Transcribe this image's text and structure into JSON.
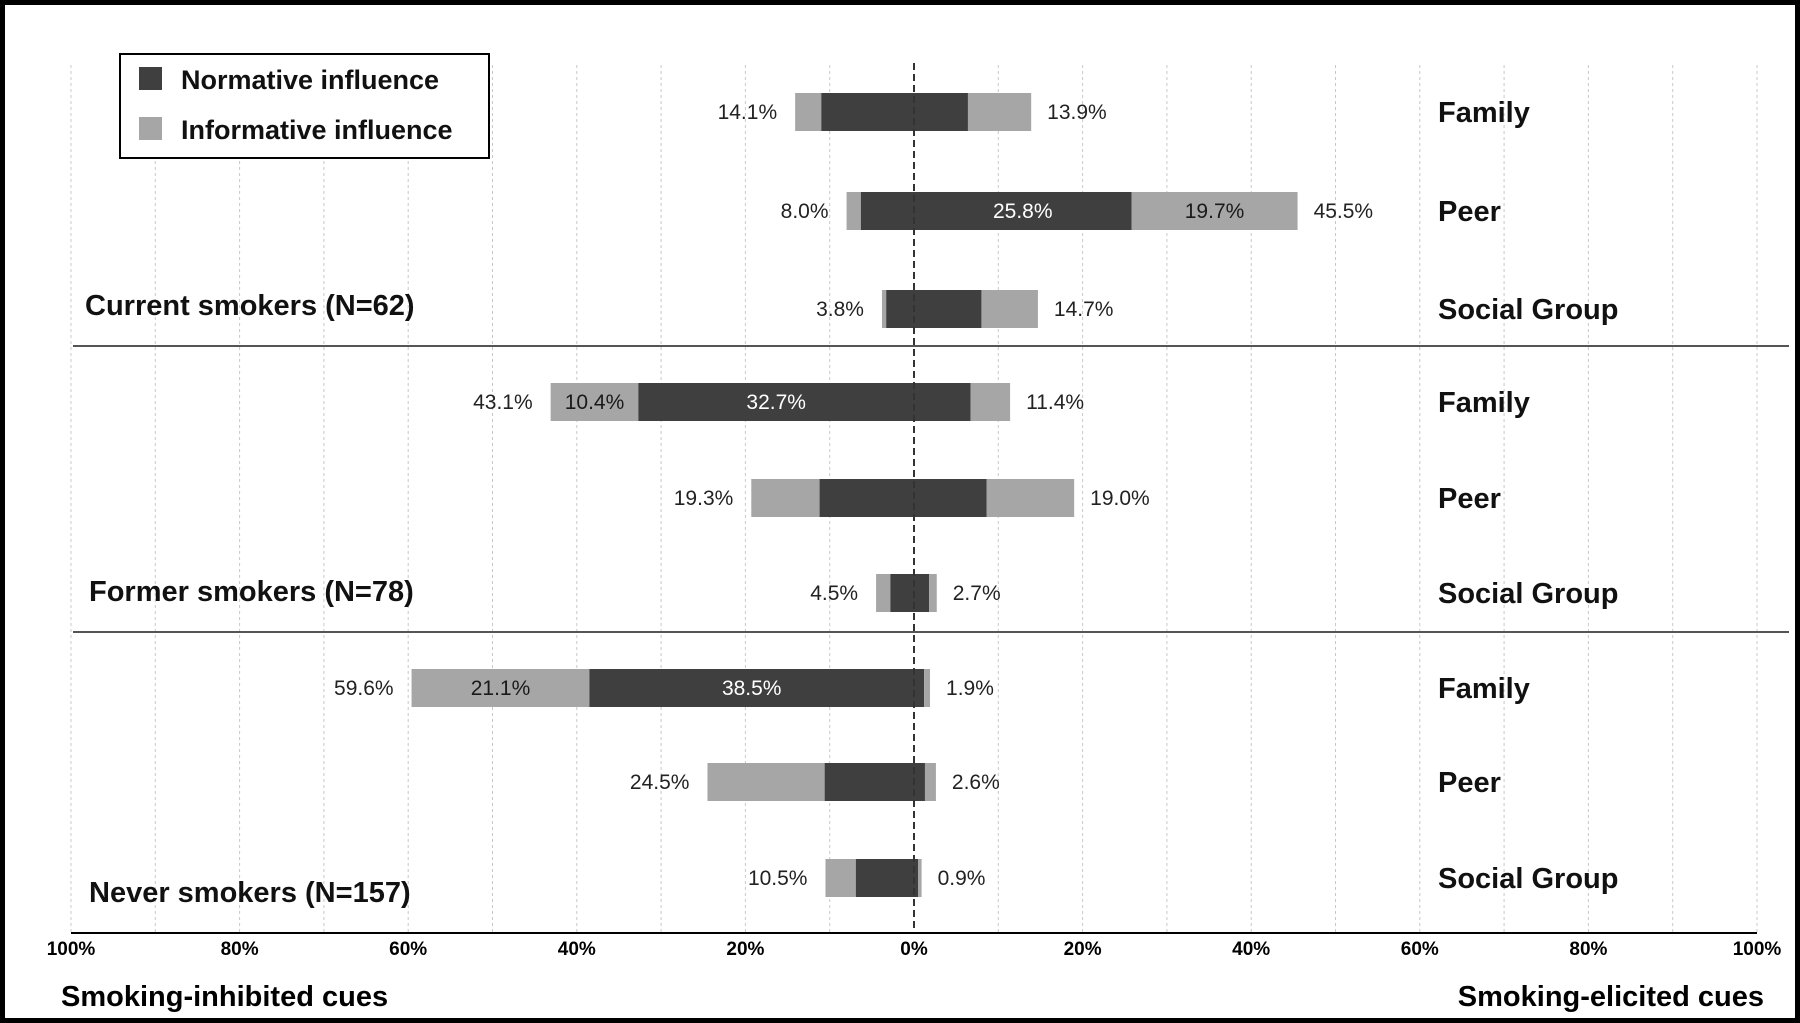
{
  "chart_data": {
    "type": "bar",
    "orientation": "horizontal-diverging",
    "axis": {
      "ticks": [
        "100%",
        "80%",
        "60%",
        "40%",
        "20%",
        "0%",
        "20%",
        "40%",
        "60%",
        "80%",
        "100%"
      ],
      "xlim": [
        -100,
        100
      ],
      "left_title": "Smoking-inhibited  cues",
      "right_title": "Smoking-elicited  cues",
      "grid": true
    },
    "legend": {
      "placement": "top-left",
      "entries": [
        {
          "name": "Normative influence",
          "color": "#3f3f3f"
        },
        {
          "name": "Informative influence",
          "color": "#a6a6a6"
        }
      ]
    },
    "colors": {
      "normative": "#3f3f3f",
      "informative": "#a6a6a6"
    },
    "groups": [
      {
        "label": "Current smokers (N=62)",
        "rows": [
          {
            "category": "Family",
            "left": {
              "normative": 11.0,
              "informative": 3.1,
              "total_label": "14.1%"
            },
            "right": {
              "normative": 6.4,
              "informative": 7.5,
              "total_label": "13.9%"
            }
          },
          {
            "category": "Peer",
            "left": {
              "normative": 6.3,
              "informative": 1.7,
              "total_label": "8.0%"
            },
            "right": {
              "normative": 25.8,
              "informative": 19.7,
              "normative_label": "25.8%",
              "informative_label": "19.7%",
              "total_label": "45.5%"
            }
          },
          {
            "category": "Social Group",
            "left": {
              "normative": 3.3,
              "informative": 0.5,
              "total_label": "3.8%"
            },
            "right": {
              "normative": 8.0,
              "informative": 6.7,
              "total_label": "14.7%"
            }
          }
        ]
      },
      {
        "label": "Former smokers (N=78)",
        "rows": [
          {
            "category": "Family",
            "left": {
              "normative": 32.7,
              "informative": 10.4,
              "normative_label": "32.7%",
              "informative_label": "10.4%",
              "total_label": "43.1%"
            },
            "right": {
              "normative": 6.7,
              "informative": 4.7,
              "total_label": "11.4%"
            }
          },
          {
            "category": "Peer",
            "left": {
              "normative": 11.2,
              "informative": 8.1,
              "total_label": "19.3%"
            },
            "right": {
              "normative": 8.6,
              "informative": 10.4,
              "total_label": "19.0%"
            }
          },
          {
            "category": "Social Group",
            "left": {
              "normative": 2.8,
              "informative": 1.7,
              "total_label": "4.5%"
            },
            "right": {
              "normative": 1.8,
              "informative": 0.9,
              "total_label": "2.7%"
            }
          }
        ]
      },
      {
        "label": "Never smokers (N=157)",
        "rows": [
          {
            "category": "Family",
            "left": {
              "normative": 38.5,
              "informative": 21.1,
              "normative_label": "38.5%",
              "informative_label": "21.1%",
              "total_label": "59.6%"
            },
            "right": {
              "normative": 1.2,
              "informative": 0.7,
              "total_label": "1.9%"
            }
          },
          {
            "category": "Peer",
            "left": {
              "normative": 10.6,
              "informative": 13.9,
              "total_label": "24.5%"
            },
            "right": {
              "normative": 1.3,
              "informative": 1.3,
              "total_label": "2.6%"
            }
          },
          {
            "category": "Social Group",
            "left": {
              "normative": 6.9,
              "informative": 3.6,
              "total_label": "10.5%"
            },
            "right": {
              "normative": 0.5,
              "informative": 0.4,
              "total_label": "0.9%"
            }
          }
        ]
      }
    ]
  }
}
